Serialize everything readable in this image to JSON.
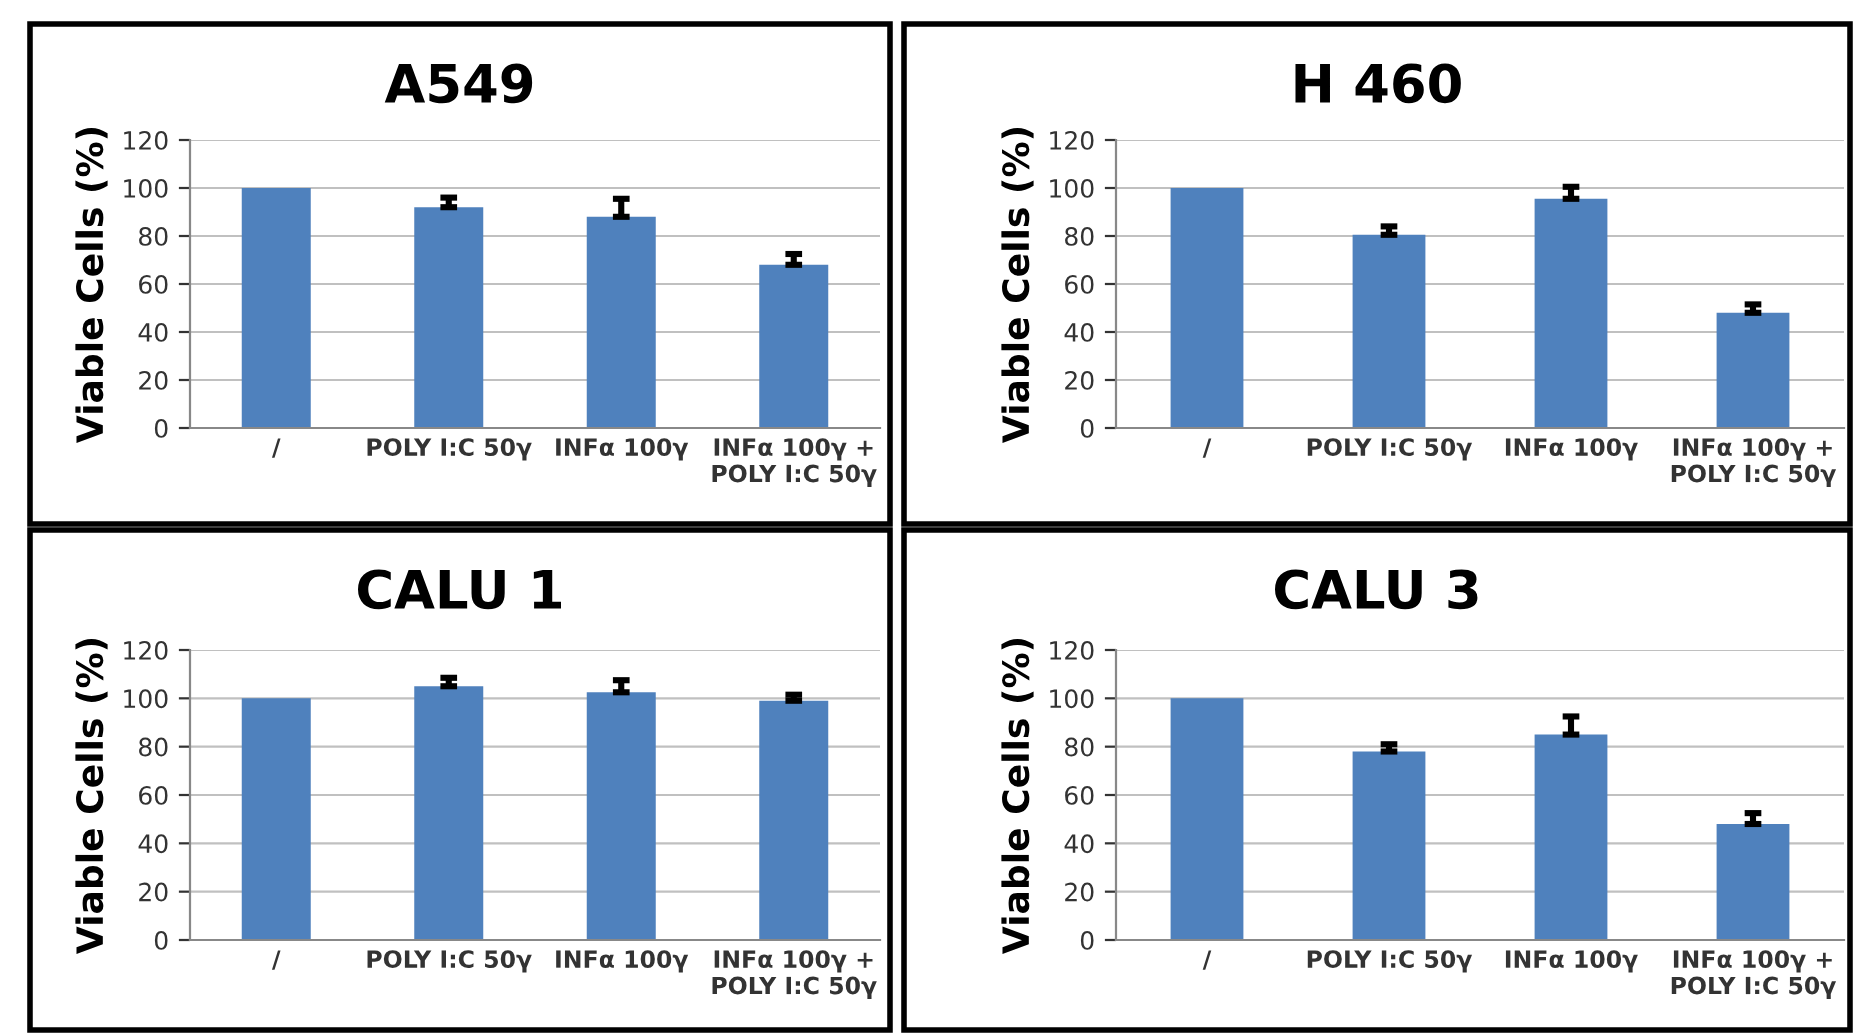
{
  "chart_data": [
    {
      "type": "bar",
      "title": "A549",
      "ylabel": "Viable Cells (%)",
      "categories": [
        "/",
        "POLY I:C 50γ",
        "INFα 100γ",
        "INFα 100γ +\nPOLY I:C 50γ"
      ],
      "values": [
        100,
        92,
        88,
        68
      ],
      "errors": [
        null,
        [
          92,
          96
        ],
        [
          88,
          95.5
        ],
        [
          68,
          72.5
        ]
      ],
      "color": "#4f81bd",
      "ylim": [
        0,
        120
      ],
      "yticks": [
        0,
        20,
        40,
        60,
        80,
        100,
        120
      ],
      "grid": "y"
    },
    {
      "type": "bar",
      "title": "H 460",
      "ylabel": "Viable Cells (%)",
      "categories": [
        "/",
        "POLY I:C 50γ",
        "INFα 100γ",
        "INFα 100γ +\nPOLY I:C 50γ"
      ],
      "values": [
        100,
        80.5,
        95.5,
        48
      ],
      "errors": [
        null,
        [
          80.5,
          84
        ],
        [
          95.5,
          100.5
        ],
        [
          48,
          51.5
        ]
      ],
      "color": "#4f81bd",
      "ylim": [
        0,
        120
      ],
      "yticks": [
        0,
        20,
        40,
        60,
        80,
        100,
        120
      ],
      "grid": "y"
    },
    {
      "type": "bar",
      "title": "CALU 1",
      "ylabel": "Viable Cells (%)",
      "categories": [
        "/",
        "POLY I:C 50γ",
        "INFα 100γ",
        "INFα 100γ +\nPOLY I:C 50γ"
      ],
      "values": [
        100,
        105,
        102.5,
        99
      ],
      "errors": [
        null,
        [
          105,
          108.5
        ],
        [
          102.5,
          107.5
        ],
        [
          99,
          101.5
        ]
      ],
      "color": "#4f81bd",
      "ylim": [
        0,
        120
      ],
      "yticks": [
        0,
        20,
        40,
        60,
        80,
        100,
        120
      ],
      "grid": "y"
    },
    {
      "type": "bar",
      "title": "CALU 3",
      "ylabel": "Viable Cells (%)",
      "categories": [
        "/",
        "POLY I:C 50γ",
        "INFα 100γ",
        "INFα 100γ +\nPOLY I:C 50γ"
      ],
      "values": [
        100,
        78,
        85,
        48
      ],
      "errors": [
        null,
        [
          78,
          81
        ],
        [
          85,
          92.5
        ],
        [
          48,
          52.5
        ]
      ],
      "color": "#4f81bd",
      "ylim": [
        0,
        120
      ],
      "yticks": [
        0,
        20,
        40,
        60,
        80,
        100,
        120
      ],
      "grid": "y"
    }
  ]
}
